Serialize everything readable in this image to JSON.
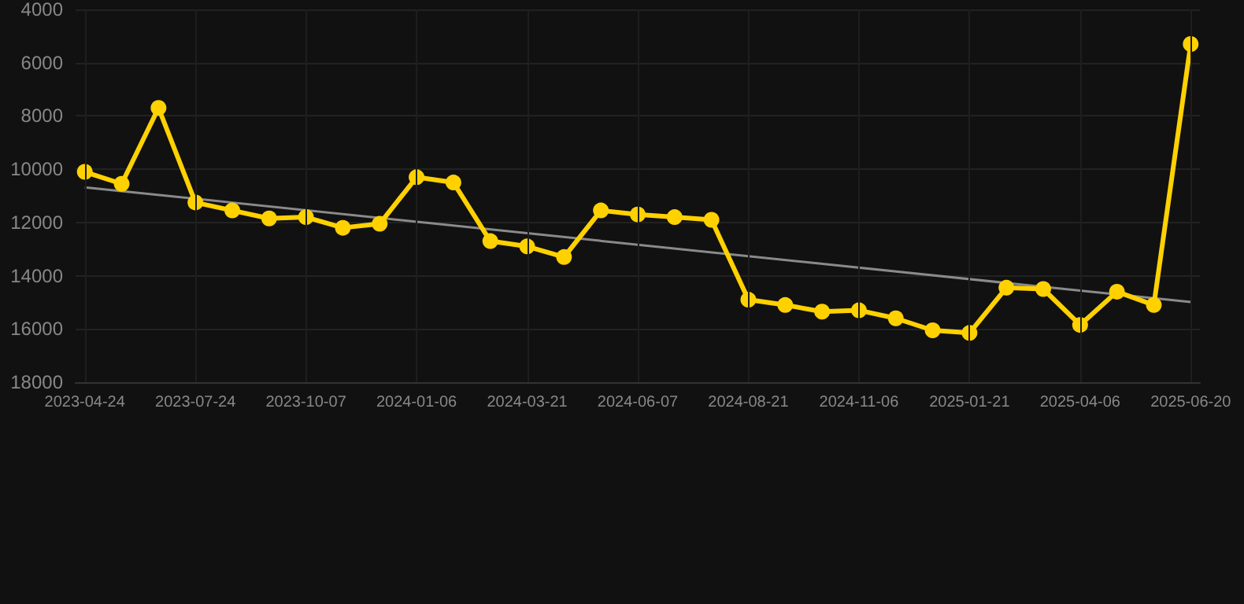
{
  "chart_data": {
    "type": "line",
    "categories": [
      "2023-04-24",
      null,
      null,
      "2023-07-24",
      null,
      null,
      "2023-10-07",
      null,
      null,
      "2024-01-06",
      null,
      null,
      "2024-03-21",
      null,
      null,
      "2024-06-07",
      null,
      null,
      "2024-08-21",
      null,
      null,
      "2024-11-06",
      null,
      null,
      "2025-01-21",
      null,
      null,
      "2025-04-06",
      null,
      null,
      "2025-06-20"
    ],
    "series": [
      {
        "color": "#ffd100",
        "values": [
          10100,
          10550,
          7700,
          11250,
          11550,
          11850,
          11800,
          12200,
          12050,
          10300,
          10500,
          12700,
          12900,
          13300,
          11550,
          11700,
          11800,
          11900,
          14900,
          15100,
          15350,
          15300,
          15600,
          16050,
          16150,
          14450,
          14500,
          15850,
          14600,
          15100,
          5300
        ],
        "marker": "circle"
      },
      {
        "type": "line",
        "color": "#8a8a8a",
        "values": [
          10680,
          null,
          null,
          null,
          null,
          null,
          null,
          null,
          null,
          null,
          null,
          null,
          null,
          null,
          null,
          null,
          null,
          null,
          null,
          null,
          null,
          null,
          null,
          null,
          null,
          null,
          null,
          null,
          null,
          null,
          14990
        ],
        "marker": "none"
      }
    ],
    "ylim": [
      18000,
      4000
    ],
    "yticks": [
      4000,
      6000,
      8000,
      10000,
      12000,
      14000,
      16000,
      18000
    ],
    "grid": true
  }
}
